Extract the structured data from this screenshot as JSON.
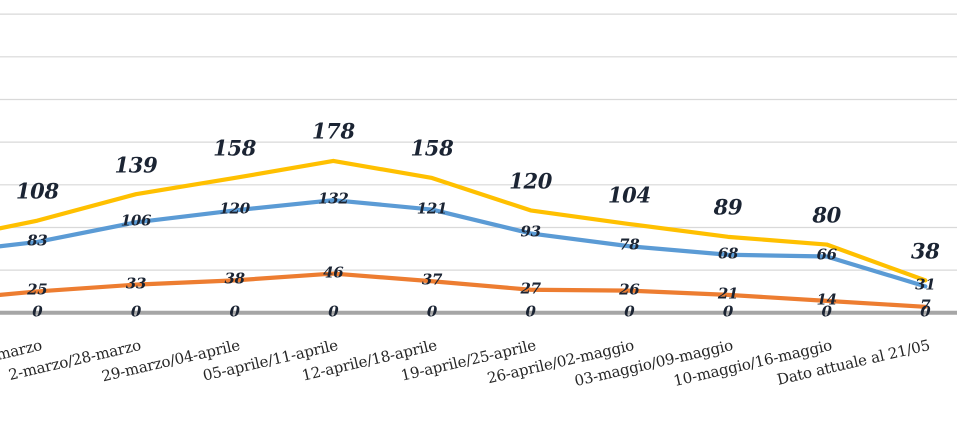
{
  "chart_data": {
    "type": "line",
    "title": "",
    "legend": false,
    "grid": true,
    "ylim": [
      0,
      350
    ],
    "gridline_step": 50,
    "x_axis": {
      "label_rotation_deg": -13,
      "note_first_label_clipped": true
    },
    "categories": [
      "marzo",
      "2-marzo/28-marzo",
      "29-marzo/04-aprile",
      "05-aprile/11-aprile",
      "12-aprile/18-aprile",
      "19-aprile/25-aprile",
      "26-aprile/02-maggio",
      "03-maggio/09-maggio",
      "10-maggio/16-maggio",
      "Dato attuale al 21/05"
    ],
    "series": [
      {
        "name": "yellow-total-line",
        "color": "#FFC000",
        "values": [
          108,
          139,
          158,
          178,
          158,
          120,
          104,
          89,
          80,
          38
        ],
        "label_position": "above",
        "label_size": "large"
      },
      {
        "name": "blue-line",
        "color": "#5B9BD5",
        "values": [
          83,
          106,
          120,
          132,
          121,
          93,
          78,
          68,
          66,
          31
        ],
        "label_position": "center",
        "label_size": "normal"
      },
      {
        "name": "orange-line",
        "color": "#ED7D31",
        "values": [
          25,
          33,
          38,
          46,
          37,
          27,
          26,
          21,
          14,
          7
        ],
        "label_position": "center",
        "label_size": "normal"
      },
      {
        "name": "gray-zero-baseline",
        "color": "#A6A6A6",
        "values": [
          0,
          0,
          0,
          0,
          0,
          0,
          0,
          0,
          0,
          0
        ],
        "label_position": "center",
        "label_size": "normal",
        "full_width": true
      }
    ],
    "left_edge_intercepts": {
      "yellow-total-line": 99,
      "blue-line": 78,
      "orange-line": 21,
      "gray-zero-baseline": 0
    }
  },
  "style": {
    "background": "#FFFFFF",
    "gridline_color": "#D9D9D9",
    "axis_line_color": "#A6A6A6",
    "data_label_color": "#1B2433",
    "axis_label_color": "#262626"
  }
}
